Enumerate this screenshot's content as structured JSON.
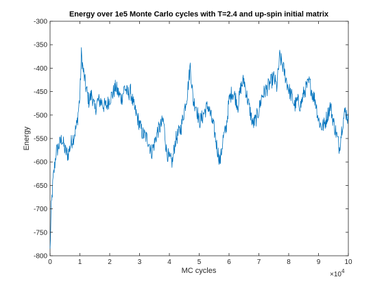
{
  "chart_data": {
    "type": "line",
    "title": "Energy over 1e5 Monte Carlo cycles with T=2.4 and up-spin initial matrix",
    "xlabel": "MC cycles",
    "ylabel": "Energy",
    "x_exponent_label": "×10",
    "x_exponent_power": "4",
    "xlim": [
      0,
      100000
    ],
    "ylim": [
      -800,
      -300
    ],
    "grid": false,
    "legend": "none",
    "x_tick_values": [
      0,
      10000,
      20000,
      30000,
      40000,
      50000,
      60000,
      70000,
      80000,
      90000,
      100000
    ],
    "x_tick_labels": [
      "0",
      "1",
      "2",
      "3",
      "4",
      "5",
      "6",
      "7",
      "8",
      "9",
      "10"
    ],
    "y_tick_values": [
      -300,
      -350,
      -400,
      -450,
      -500,
      -550,
      -600,
      -650,
      -700,
      -750,
      -800
    ],
    "y_tick_labels": [
      "-300",
      "-350",
      "-400",
      "-450",
      "-500",
      "-550",
      "-600",
      "-650",
      "-700",
      "-750",
      "-800"
    ],
    "series": [
      {
        "color": "#0072BD",
        "x": [
          0,
          400,
          1000,
          2000,
          3000,
          4000,
          5000,
          6000,
          7000,
          8000,
          9000,
          10000,
          10500,
          11000,
          12000,
          13000,
          14000,
          15000,
          16000,
          17000,
          18000,
          19000,
          20000,
          21000,
          22000,
          23000,
          24000,
          25000,
          26000,
          27000,
          28000,
          29000,
          30000,
          31000,
          32000,
          33000,
          34000,
          35000,
          36000,
          37000,
          38000,
          39000,
          40000,
          41000,
          42000,
          43000,
          44000,
          45000,
          46000,
          47000,
          48000,
          49000,
          50000,
          51000,
          52000,
          53000,
          54000,
          55000,
          56000,
          57000,
          58000,
          59000,
          60000,
          61000,
          62000,
          63000,
          64000,
          65000,
          66000,
          67000,
          68000,
          69000,
          70000,
          71000,
          72000,
          73000,
          74000,
          75000,
          76000,
          77000,
          78000,
          79000,
          80000,
          81000,
          82000,
          83000,
          84000,
          85000,
          86000,
          87000,
          88000,
          89000,
          90000,
          91000,
          92000,
          93000,
          94000,
          95000,
          96000,
          97000,
          98000,
          99000,
          100000
        ],
        "y": [
          -790,
          -700,
          -640,
          -580,
          -565,
          -550,
          -575,
          -585,
          -560,
          -545,
          -520,
          -460,
          -370,
          -400,
          -440,
          -470,
          -455,
          -490,
          -470,
          -470,
          -480,
          -480,
          -465,
          -455,
          -440,
          -455,
          -465,
          -440,
          -455,
          -450,
          -480,
          -500,
          -520,
          -540,
          -545,
          -555,
          -580,
          -560,
          -535,
          -525,
          -510,
          -575,
          -595,
          -600,
          -555,
          -540,
          -525,
          -490,
          -455,
          -395,
          -470,
          -480,
          -515,
          -505,
          -490,
          -480,
          -505,
          -530,
          -570,
          -600,
          -550,
          -530,
          -470,
          -450,
          -460,
          -480,
          -440,
          -425,
          -460,
          -490,
          -520,
          -510,
          -490,
          -460,
          -450,
          -440,
          -430,
          -420,
          -440,
          -375,
          -395,
          -420,
          -445,
          -460,
          -480,
          -470,
          -480,
          -455,
          -440,
          -430,
          -455,
          -470,
          -510,
          -525,
          -520,
          -500,
          -480,
          -515,
          -540,
          -570,
          -520,
          -490,
          -510
        ]
      }
    ]
  }
}
